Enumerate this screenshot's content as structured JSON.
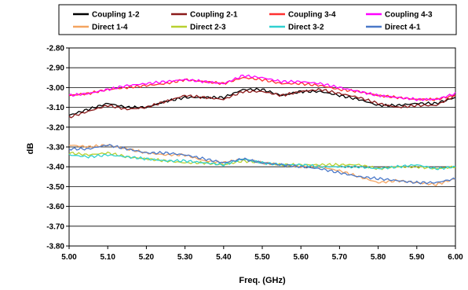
{
  "chart_data": {
    "type": "line",
    "title": "",
    "xlabel": "Freq. (GHz)",
    "ylabel": "dB",
    "xlim": [
      5.0,
      6.0
    ],
    "ylim": [
      -3.8,
      -2.8
    ],
    "x_ticks": [
      "5.00",
      "5.10",
      "5.20",
      "5.30",
      "5.40",
      "5.50",
      "5.60",
      "5.70",
      "5.80",
      "5.90",
      "6.00"
    ],
    "y_ticks": [
      "-2.80",
      "-2.90",
      "-3.00",
      "-3.10",
      "-3.20",
      "-3.30",
      "-3.40",
      "-3.50",
      "-3.60",
      "-3.70",
      "-3.80"
    ],
    "grid": "horizontal",
    "legend_position": "top",
    "x": [
      5.0,
      5.05,
      5.1,
      5.15,
      5.2,
      5.25,
      5.3,
      5.35,
      5.4,
      5.45,
      5.5,
      5.55,
      5.6,
      5.65,
      5.7,
      5.75,
      5.8,
      5.85,
      5.9,
      5.95,
      6.0
    ],
    "series": [
      {
        "name": "Coupling 1-2",
        "color": "#000000",
        "values": [
          -3.14,
          -3.11,
          -3.08,
          -3.1,
          -3.1,
          -3.07,
          -3.05,
          -3.05,
          -3.05,
          -3.01,
          -3.01,
          -3.04,
          -3.02,
          -3.02,
          -3.04,
          -3.06,
          -3.09,
          -3.09,
          -3.08,
          -3.08,
          -3.05
        ]
      },
      {
        "name": "Coupling 2-1",
        "color": "#8b1a1a",
        "values": [
          -3.15,
          -3.12,
          -3.09,
          -3.11,
          -3.1,
          -3.07,
          -3.04,
          -3.05,
          -3.06,
          -3.02,
          -3.02,
          -3.04,
          -3.02,
          -3.01,
          -3.03,
          -3.05,
          -3.08,
          -3.1,
          -3.09,
          -3.09,
          -3.04
        ]
      },
      {
        "name": "Coupling 3-4",
        "color": "#ff3030",
        "values": [
          -3.04,
          -3.03,
          -3.01,
          -3.0,
          -2.99,
          -2.98,
          -2.96,
          -2.97,
          -2.98,
          -2.95,
          -2.96,
          -2.98,
          -2.98,
          -2.99,
          -3.01,
          -3.02,
          -3.04,
          -3.05,
          -3.06,
          -3.06,
          -3.04
        ]
      },
      {
        "name": "Coupling 4-3",
        "color": "#ff00ff",
        "values": [
          -3.04,
          -3.03,
          -3.01,
          -2.99,
          -2.98,
          -2.97,
          -2.96,
          -2.97,
          -2.98,
          -2.94,
          -2.95,
          -2.97,
          -2.97,
          -2.98,
          -3.0,
          -3.02,
          -3.04,
          -3.05,
          -3.06,
          -3.06,
          -3.03
        ]
      },
      {
        "name": "Direct 1-4",
        "color": "#f4a460",
        "values": [
          -3.29,
          -3.3,
          -3.29,
          -3.31,
          -3.33,
          -3.34,
          -3.34,
          -3.37,
          -3.38,
          -3.36,
          -3.38,
          -3.39,
          -3.4,
          -3.4,
          -3.42,
          -3.45,
          -3.48,
          -3.47,
          -3.48,
          -3.49,
          -3.46
        ]
      },
      {
        "name": "Direct 2-3",
        "color": "#b8d030",
        "values": [
          -3.33,
          -3.34,
          -3.33,
          -3.35,
          -3.36,
          -3.37,
          -3.38,
          -3.38,
          -3.39,
          -3.37,
          -3.38,
          -3.39,
          -3.39,
          -3.39,
          -3.39,
          -3.39,
          -3.41,
          -3.4,
          -3.4,
          -3.41,
          -3.4
        ]
      },
      {
        "name": "Direct 3-2",
        "color": "#30d0d0",
        "values": [
          -3.34,
          -3.35,
          -3.34,
          -3.35,
          -3.36,
          -3.37,
          -3.37,
          -3.38,
          -3.39,
          -3.36,
          -3.38,
          -3.39,
          -3.39,
          -3.4,
          -3.4,
          -3.4,
          -3.41,
          -3.4,
          -3.39,
          -3.41,
          -3.4
        ]
      },
      {
        "name": "Direct 4-1",
        "color": "#4a78c8",
        "values": [
          -3.31,
          -3.31,
          -3.29,
          -3.31,
          -3.33,
          -3.33,
          -3.34,
          -3.36,
          -3.38,
          -3.36,
          -3.38,
          -3.39,
          -3.4,
          -3.41,
          -3.43,
          -3.45,
          -3.46,
          -3.47,
          -3.48,
          -3.48,
          -3.46
        ]
      }
    ]
  }
}
